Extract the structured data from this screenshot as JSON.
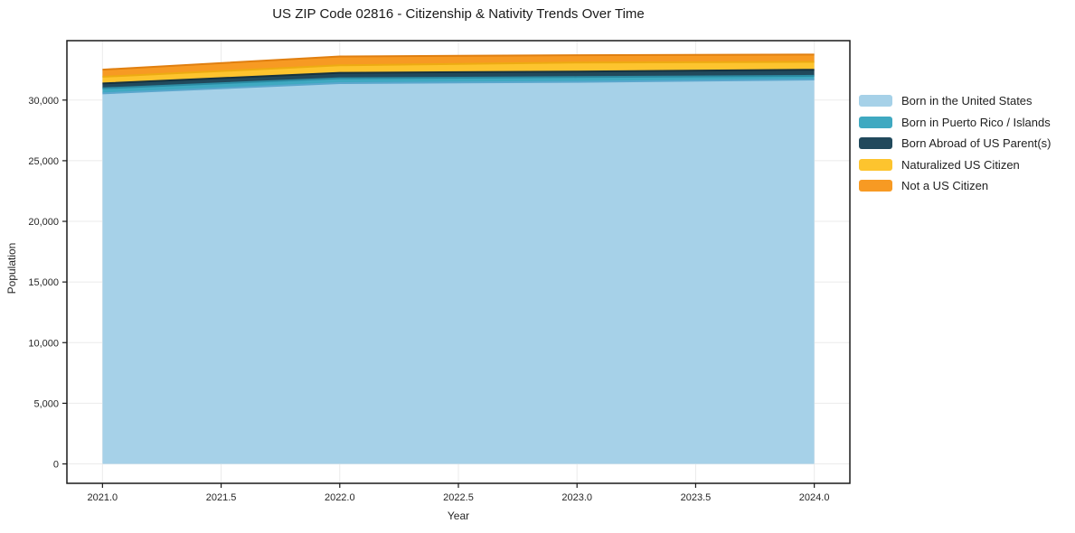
{
  "title": "US ZIP Code 02816 - Citizenship & Nativity Trends Over Time",
  "axes": {
    "x_label": "Year",
    "y_label": "Population",
    "x_ticks": [
      {
        "value": 2021.0,
        "label": "2021.0"
      },
      {
        "value": 2021.5,
        "label": "2021.5"
      },
      {
        "value": 2022.0,
        "label": "2022.0"
      },
      {
        "value": 2022.5,
        "label": "2022.5"
      },
      {
        "value": 2023.0,
        "label": "2023.0"
      },
      {
        "value": 2023.5,
        "label": "2023.5"
      },
      {
        "value": 2024.0,
        "label": "2024.0"
      }
    ],
    "y_ticks": [
      {
        "value": 0,
        "label": "0"
      },
      {
        "value": 5000,
        "label": "5,000"
      },
      {
        "value": 10000,
        "label": "10,000"
      },
      {
        "value": 15000,
        "label": "15,000"
      },
      {
        "value": 20000,
        "label": "20,000"
      },
      {
        "value": 25000,
        "label": "25,000"
      },
      {
        "value": 30000,
        "label": "30,000"
      }
    ]
  },
  "chart_data": {
    "type": "area",
    "stacked": true,
    "title": "US ZIP Code 02816 - Citizenship & Nativity Trends Over Time",
    "xlabel": "Year",
    "ylabel": "Population",
    "x": [
      2021,
      2022,
      2023,
      2024
    ],
    "xlim": [
      2020.85,
      2024.15
    ],
    "ylim": [
      -1600,
      34900
    ],
    "grid": true,
    "legend_position": "right",
    "series": [
      {
        "name": "Born in the United States",
        "values": [
          30550,
          31400,
          31500,
          31700
        ],
        "fill": "#a6d1e8",
        "edge": "#5aa7cd"
      },
      {
        "name": "Born in Puerto Rico / Islands",
        "values": [
          420,
          400,
          400,
          300
        ],
        "fill": "#3fa9c1",
        "edge": "#2b8ba3"
      },
      {
        "name": "Born Abroad of US Parent(s)",
        "values": [
          400,
          450,
          450,
          500
        ],
        "fill": "#21495c",
        "edge": "#16323f"
      },
      {
        "name": "Naturalized US Citizen",
        "values": [
          550,
          620,
          750,
          650
        ],
        "fill": "#fdc42e",
        "edge": "#edab12"
      },
      {
        "name": "Not a US Citizen",
        "values": [
          590,
          730,
          600,
          600
        ],
        "fill": "#f79a23",
        "edge": "#e07f10"
      }
    ],
    "colors": {
      "grid": "#ebebeb",
      "frame": "#1a1a1a",
      "tick_text": "#262626"
    }
  }
}
